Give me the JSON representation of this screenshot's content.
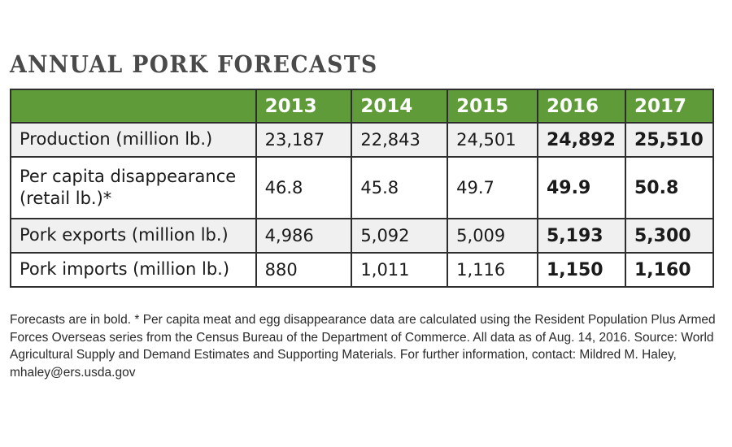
{
  "title": "Annual Pork Forecasts",
  "colors": {
    "header_bg": "#5f9c39",
    "header_text": "#ffffff",
    "odd_row_bg": "#f0f0f0",
    "border": "#2e2e2e"
  },
  "table": {
    "corner": "",
    "years": [
      "2013",
      "2014",
      "2015",
      "2016",
      "2017"
    ],
    "forecast_years": [
      "2016",
      "2017"
    ],
    "rows": [
      {
        "label": "Production (million lb.)",
        "values": [
          "23,187",
          "22,843",
          "24,501",
          "24,892",
          "25,510"
        ]
      },
      {
        "label_line1": "Per capita disappearance",
        "label_line2": "(retail lb.)*",
        "values": [
          "46.8",
          "45.8",
          "49.7",
          "49.9",
          "50.8"
        ]
      },
      {
        "label": "Pork exports (million lb.)",
        "values": [
          "4,986",
          "5,092",
          "5,009",
          "5,193",
          "5,300"
        ]
      },
      {
        "label": "Pork imports (million lb.)",
        "values": [
          "880",
          "1,011",
          "1,116",
          "1,150",
          "1,160"
        ]
      }
    ]
  },
  "footnote": "Forecasts are in bold. * Per capita meat and egg disappearance data are calculated using the Resident Population Plus Armed Forces Overseas series from the Census Bureau of the Department of Commerce. All data as of Aug. 14, 2016. Source: World Agricultural Supply and Demand Estimates and Supporting Materials. For further information, contact: Mildred M. Haley, mhaley@ers.usda.gov"
}
